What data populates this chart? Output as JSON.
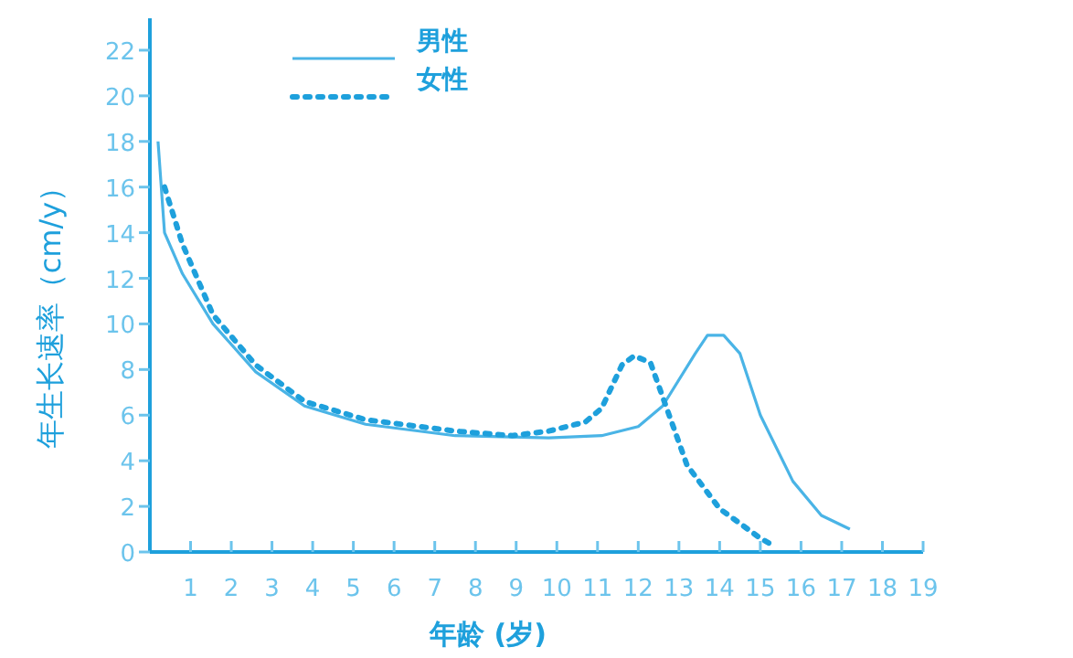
{
  "chart_data": {
    "type": "line",
    "xlabel": "年龄 (岁)",
    "ylabel": "年生长速率（cm/y）",
    "xlim": [
      0,
      19
    ],
    "xticks": [
      1,
      2,
      3,
      4,
      5,
      6,
      7,
      8,
      9,
      10,
      11,
      12,
      13,
      14,
      15,
      16,
      17,
      18,
      19
    ],
    "ylim": [
      0,
      23.4
    ],
    "yticks": [
      0,
      2,
      4,
      6,
      8,
      10,
      12,
      14,
      16,
      18,
      20,
      22
    ],
    "grid": false,
    "legend": "top",
    "marker": "none",
    "series": [
      {
        "name": "男性",
        "color": "#4ab4e6",
        "line_style": "solid",
        "x": [
          0.2,
          0.36,
          0.8,
          1.55,
          2.6,
          3.8,
          5.3,
          7.5,
          9.8,
          11.1,
          12.0,
          12.6,
          13.4,
          13.7,
          14.1,
          14.5,
          15.0,
          15.8,
          16.5,
          17.2
        ],
        "values": [
          18.0,
          14.0,
          12.2,
          10.0,
          7.9,
          6.4,
          5.6,
          5.1,
          5.0,
          5.1,
          5.5,
          6.4,
          8.7,
          9.5,
          9.5,
          8.7,
          6.0,
          3.1,
          1.6,
          1.0
        ]
      },
      {
        "name": "女性",
        "color": "#1ea0dc",
        "line_style": "dotted",
        "x": [
          0.36,
          0.8,
          1.55,
          2.6,
          3.8,
          5.3,
          7.5,
          8.9,
          9.8,
          10.7,
          11.1,
          11.6,
          11.9,
          12.3,
          12.7,
          13.2,
          14.0,
          15.0,
          15.3
        ],
        "values": [
          16.0,
          13.5,
          10.4,
          8.2,
          6.6,
          5.8,
          5.3,
          5.1,
          5.3,
          5.7,
          6.3,
          8.2,
          8.6,
          8.3,
          6.3,
          3.8,
          1.9,
          0.6,
          0.3
        ]
      }
    ]
  }
}
